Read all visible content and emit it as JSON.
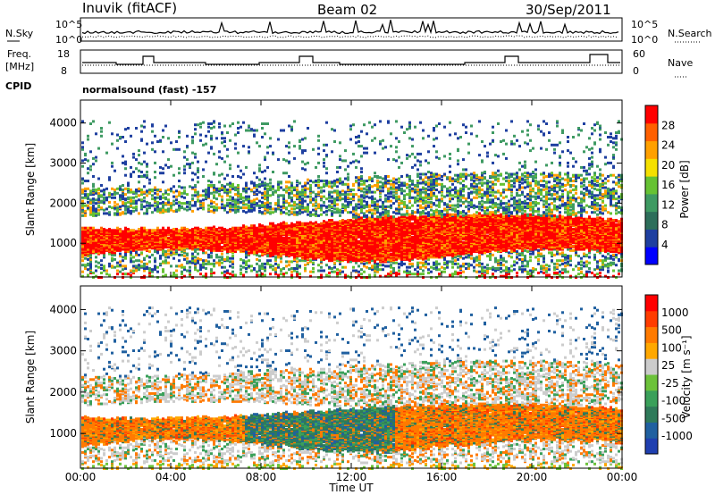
{
  "header": {
    "station": "Inuvik (fitACF)",
    "beam": "Beam 02",
    "date": "30/Sep/2011"
  },
  "top_panels": {
    "nsky_label": "N.Sky",
    "nsky_ticks": [
      "10^5",
      "10^0"
    ],
    "nsearch_label": "N.Search",
    "nsearch_ticks": [
      "10^5",
      "10^0"
    ],
    "freq_label_line1": "Freq.",
    "freq_label_line2": "[MHz]",
    "freq_ticks": [
      "18",
      "8"
    ],
    "nave_label": "Nave",
    "nave_ticks": [
      "60",
      "0"
    ],
    "cpid_label": "CPID",
    "cpid_text": "normalsound (fast) -157"
  },
  "colors": {
    "power_scale": [
      "#0000ff",
      "#1e3fa0",
      "#2d6e5a",
      "#3e9a62",
      "#66c233",
      "#f5e000",
      "#ffa000",
      "#ff6000",
      "#ff0000"
    ],
    "velocity_scale": [
      "#1f3fb0",
      "#2060a0",
      "#2f7a5a",
      "#3aa05a",
      "#6cc23a",
      "#cccccc",
      "#ffa800",
      "#ff7a00",
      "#ff3c00",
      "#ff0000"
    ]
  },
  "chart_data": [
    {
      "type": "heatmap",
      "name": "power",
      "x_ticks": [
        "00:00",
        "04:00",
        "08:00",
        "12:00",
        "16:00",
        "20:00",
        "00:00"
      ],
      "ylabel": "Slant Range [km]",
      "y_ticks": [
        "4000",
        "3000",
        "2000",
        "1000"
      ],
      "ylim": [
        180,
        4550
      ],
      "colorbar_label": "Power [dB]",
      "colorbar_ticks": [
        "28",
        "24",
        "20",
        "16",
        "12",
        "8",
        "4"
      ],
      "main_band_km": [
        700,
        1700
      ],
      "secondary_band_km": [
        1700,
        2600
      ],
      "x_range_h": [
        0,
        24
      ]
    },
    {
      "type": "heatmap",
      "name": "velocity",
      "x_ticks": [
        "00:00",
        "04:00",
        "08:00",
        "12:00",
        "16:00",
        "20:00",
        "00:00"
      ],
      "xlabel": "Time UT",
      "ylabel": "Slant Range [km]",
      "y_ticks": [
        "4000",
        "3000",
        "2000",
        "1000"
      ],
      "ylim": [
        180,
        4550
      ],
      "colorbar_label": "Velocity [m s⁻¹]",
      "colorbar_ticks": [
        "1000",
        "500",
        "100",
        "25",
        "-25",
        "-100",
        "-500",
        "-1000"
      ],
      "x_range_h": [
        0,
        24
      ]
    }
  ]
}
